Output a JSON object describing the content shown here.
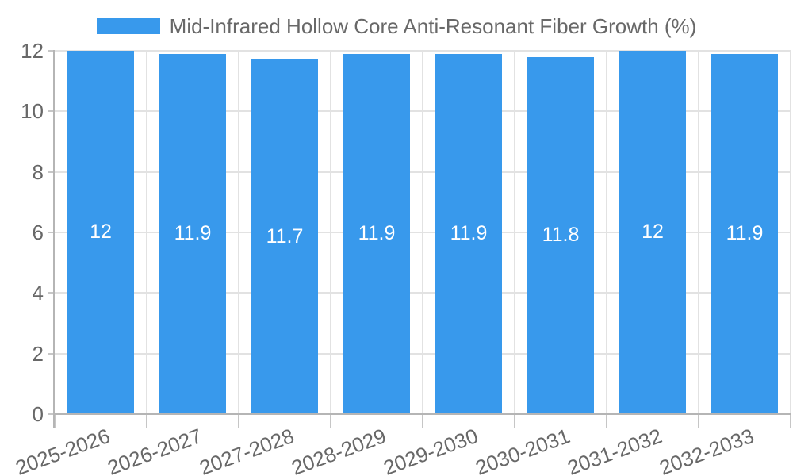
{
  "legend": {
    "label": "Mid-Infrared Hollow Core Anti-Resonant Fiber Growth (%)"
  },
  "chart_data": {
    "type": "bar",
    "title": "Mid-Infrared Hollow Core Anti-Resonant Fiber Growth (%)",
    "legend_position": "top",
    "categories": [
      "2025-2026",
      "2026-2027",
      "2027-2028",
      "2028-2029",
      "2029-2030",
      "2030-2031",
      "2031-2032",
      "2032-2033"
    ],
    "values": [
      12,
      11.9,
      11.7,
      11.9,
      11.9,
      11.8,
      12,
      11.9
    ],
    "data_labels": [
      "12",
      "11.9",
      "11.7",
      "11.9",
      "11.9",
      "11.8",
      "12",
      "11.9"
    ],
    "xlabel": "",
    "ylabel": "",
    "y_ticks": [
      0,
      2,
      4,
      6,
      8,
      10,
      12
    ],
    "y_tick_labels": [
      "0",
      "2",
      "4",
      "6",
      "8",
      "10",
      "12"
    ],
    "ylim": [
      0,
      12
    ],
    "grid": true,
    "x_tick_rotation": -20,
    "colors": {
      "bar": "#3899EC",
      "grid": "#E2E2E2",
      "axis": "#B5B5B5",
      "tick": "#C6C6C6",
      "text": "#686868",
      "bar_label": "#FFFFFF",
      "background": "#FFFFFF"
    }
  }
}
